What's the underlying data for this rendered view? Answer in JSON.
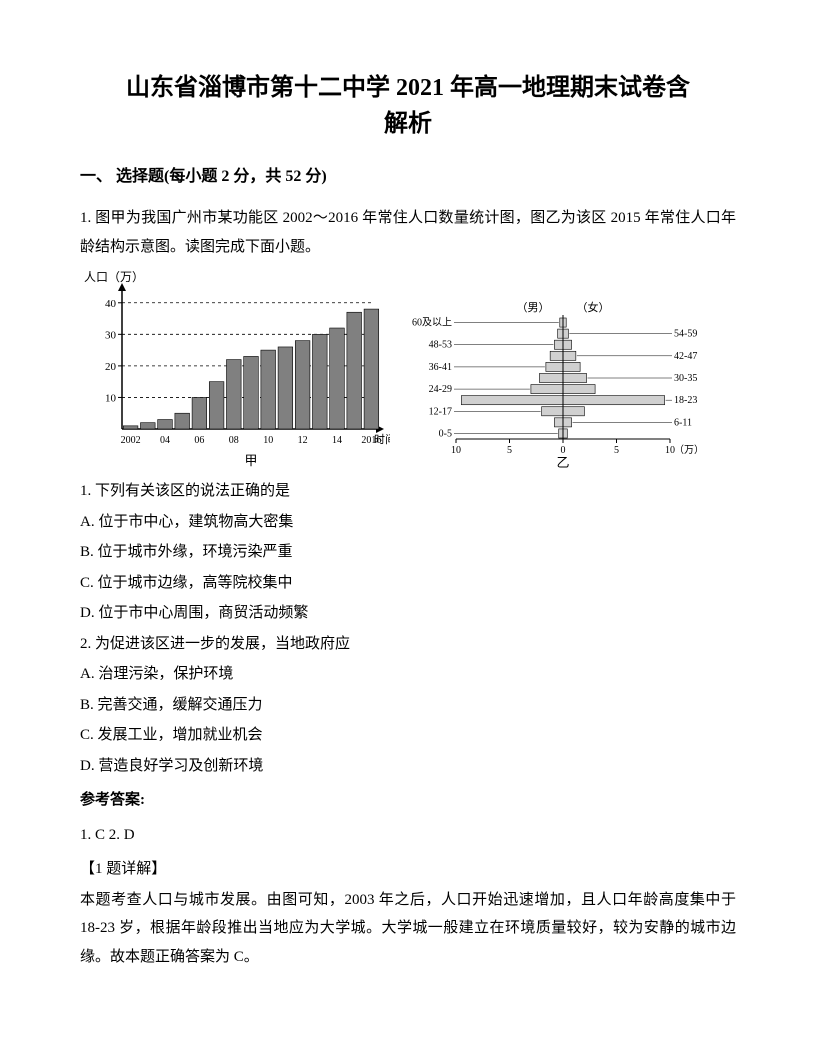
{
  "title_line1": "山东省淄博市第十二中学 2021 年高一地理期末试卷含",
  "title_line2": "解析",
  "section1": "一、 选择题(每小题 2 分，共 52 分)",
  "q1_intro": "1. 图甲为我国广州市某功能区 2002～2016 年常住人口数量统计图，图乙为该区 2015 年常住人口年龄结构示意图。读图完成下面小题。",
  "bar_chart": {
    "type": "bar",
    "y_label": "人口（万）",
    "y_ticks": [
      10,
      20,
      30,
      40
    ],
    "y_max": 45,
    "x_labels": [
      "2002",
      "",
      "04",
      "",
      "06",
      "",
      "08",
      "",
      "10",
      "",
      "12",
      "",
      "14",
      "",
      "2016"
    ],
    "x_axis_extra": "时间（年）",
    "values": [
      1,
      2,
      3,
      5,
      10,
      15,
      22,
      23,
      25,
      26,
      28,
      30,
      32,
      37,
      38
    ],
    "bar_fill": "#808080",
    "bar_stroke": "#000000",
    "axis_color": "#000000",
    "background": "#ffffff",
    "caption": "甲"
  },
  "pyramid": {
    "type": "pyramid",
    "left_labels": [
      "60及以上",
      "48-53",
      "36-41",
      "24-29",
      "12-17",
      "0-5"
    ],
    "right_labels": [
      "54-59",
      "42-47",
      "30-35",
      "18-23",
      "6-11"
    ],
    "top_labels": {
      "left": "（男）",
      "right": "（女）"
    },
    "x_ticks_left": [
      10,
      5
    ],
    "x_ticks_right": [
      5,
      10
    ],
    "x_unit": "（万）",
    "caption": "乙",
    "bar_fill": "#d0d0d0",
    "bar_stroke": "#000000",
    "axis_color": "#000000",
    "groups": [
      {
        "m": 0.3,
        "f": 0.3
      },
      {
        "m": 0.5,
        "f": 0.5
      },
      {
        "m": 0.8,
        "f": 0.8
      },
      {
        "m": 1.2,
        "f": 1.2
      },
      {
        "m": 1.6,
        "f": 1.6
      },
      {
        "m": 2.2,
        "f": 2.2
      },
      {
        "m": 3.0,
        "f": 3.0
      },
      {
        "m": 9.5,
        "f": 9.5
      },
      {
        "m": 2.0,
        "f": 2.0
      },
      {
        "m": 0.8,
        "f": 0.8
      },
      {
        "m": 0.4,
        "f": 0.4
      }
    ]
  },
  "q1_1": "1.  下列有关该区的说法正确的是",
  "q1_1A": "A.  位于市中心，建筑物高大密集",
  "q1_1B": "B.  位于城市外缘，环境污染严重",
  "q1_1C": "C.  位于城市边缘，高等院校集中",
  "q1_1D": "D.  位于市中心周围，商贸活动频繁",
  "q1_2": "2.  为促进该区进一步的发展，当地政府应",
  "q1_2A": "A.  治理污染，保护环境",
  "q1_2B": "B.  完善交通，缓解交通压力",
  "q1_2C": "C.  发展工业，增加就业机会",
  "q1_2D": "D.  营造良好学习及创新环境",
  "ref_answer_label": "参考答案:",
  "answers_text": "1. C        2. D",
  "detail_label": "【1 题详解】",
  "detail_text": "本题考查人口与城市发展。由图可知，2003 年之后，人口开始迅速增加，且人口年龄高度集中于 18-23 岁，根据年龄段推出当地应为大学城。大学城一般建立在环境质量较好，较为安静的城市边缘。故本题正确答案为 C。"
}
